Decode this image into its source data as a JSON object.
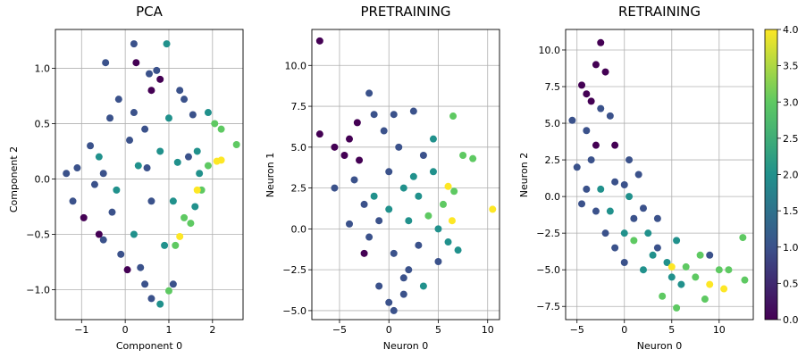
{
  "figure": {
    "background": "#ffffff"
  },
  "chart_data": [
    {
      "type": "scatter",
      "title": "PCA",
      "xlabel": "Component 0",
      "ylabel": "Component 2",
      "xlim": [
        -1.6,
        2.7
      ],
      "ylim": [
        -1.27,
        1.35
      ],
      "xticks": [
        -1,
        0,
        1,
        2
      ],
      "xtick_labels": [
        "−1",
        "0",
        "1",
        "2"
      ],
      "yticks": [
        -1.0,
        -0.5,
        0.0,
        0.5,
        1.0
      ],
      "ytick_labels": [
        "−1.0",
        "−0.5",
        "0.0",
        "0.5",
        "1.0"
      ],
      "grid": true,
      "note_points": "color value c on the shared 0–4 viridis scale",
      "points": [
        {
          "x": -0.45,
          "y": 1.05,
          "c": 1
        },
        {
          "x": 0.2,
          "y": 1.22,
          "c": 1
        },
        {
          "x": 0.95,
          "y": 1.22,
          "c": 2
        },
        {
          "x": 0.25,
          "y": 1.05,
          "c": 0
        },
        {
          "x": 0.55,
          "y": 0.95,
          "c": 1
        },
        {
          "x": 0.72,
          "y": 0.98,
          "c": 1
        },
        {
          "x": 0.8,
          "y": 0.9,
          "c": 0
        },
        {
          "x": 0.6,
          "y": 0.8,
          "c": 0
        },
        {
          "x": 1.25,
          "y": 0.8,
          "c": 1
        },
        {
          "x": 1.35,
          "y": 0.72,
          "c": 1
        },
        {
          "x": 1.55,
          "y": 0.58,
          "c": 1
        },
        {
          "x": 1.9,
          "y": 0.6,
          "c": 2
        },
        {
          "x": 2.05,
          "y": 0.5,
          "c": 3
        },
        {
          "x": 2.2,
          "y": 0.45,
          "c": 3
        },
        {
          "x": 2.55,
          "y": 0.31,
          "c": 3
        },
        {
          "x": 2.1,
          "y": 0.16,
          "c": 4
        },
        {
          "x": 2.2,
          "y": 0.17,
          "c": 4
        },
        {
          "x": 1.65,
          "y": 0.25,
          "c": 2
        },
        {
          "x": 1.9,
          "y": 0.12,
          "c": 3
        },
        {
          "x": 1.7,
          "y": 0.05,
          "c": 2
        },
        {
          "x": 1.75,
          "y": -0.1,
          "c": 3
        },
        {
          "x": 1.65,
          "y": -0.1,
          "c": 4
        },
        {
          "x": 1.6,
          "y": -0.25,
          "c": 2
        },
        {
          "x": 1.35,
          "y": -0.35,
          "c": 3
        },
        {
          "x": 1.5,
          "y": -0.4,
          "c": 3
        },
        {
          "x": 1.25,
          "y": -0.52,
          "c": 4
        },
        {
          "x": 1.15,
          "y": -0.6,
          "c": 3
        },
        {
          "x": 1.1,
          "y": -0.95,
          "c": 1
        },
        {
          "x": 1.0,
          "y": -1.01,
          "c": 3
        },
        {
          "x": 0.8,
          "y": -1.13,
          "c": 2
        },
        {
          "x": 0.6,
          "y": -1.08,
          "c": 1
        },
        {
          "x": 0.45,
          "y": -0.95,
          "c": 1
        },
        {
          "x": 0.35,
          "y": -0.8,
          "c": 1
        },
        {
          "x": 0.05,
          "y": -0.82,
          "c": 0
        },
        {
          "x": -0.1,
          "y": -0.68,
          "c": 1
        },
        {
          "x": -0.5,
          "y": -0.55,
          "c": 1
        },
        {
          "x": -0.6,
          "y": -0.5,
          "c": 0
        },
        {
          "x": -0.95,
          "y": -0.35,
          "c": 0
        },
        {
          "x": -1.2,
          "y": -0.2,
          "c": 1
        },
        {
          "x": -1.35,
          "y": 0.05,
          "c": 1
        },
        {
          "x": -1.1,
          "y": 0.1,
          "c": 1
        },
        {
          "x": -0.8,
          "y": 0.3,
          "c": 1
        },
        {
          "x": -0.6,
          "y": 0.2,
          "c": 2
        },
        {
          "x": -0.35,
          "y": 0.55,
          "c": 1
        },
        {
          "x": -0.15,
          "y": 0.72,
          "c": 1
        },
        {
          "x": 0.2,
          "y": 0.6,
          "c": 1
        },
        {
          "x": 0.45,
          "y": 0.45,
          "c": 1
        },
        {
          "x": 0.3,
          "y": 0.12,
          "c": 2
        },
        {
          "x": 0.8,
          "y": 0.25,
          "c": 2
        },
        {
          "x": 0.6,
          "y": -0.2,
          "c": 1
        },
        {
          "x": -0.2,
          "y": -0.1,
          "c": 2
        },
        {
          "x": -0.7,
          "y": -0.05,
          "c": 1
        },
        {
          "x": 0.1,
          "y": 0.35,
          "c": 1
        },
        {
          "x": 1.0,
          "y": 0.55,
          "c": 2
        },
        {
          "x": 1.1,
          "y": -0.2,
          "c": 2
        },
        {
          "x": 0.9,
          "y": -0.6,
          "c": 2
        },
        {
          "x": 0.2,
          "y": -0.5,
          "c": 2
        },
        {
          "x": -0.3,
          "y": -0.3,
          "c": 1
        },
        {
          "x": 1.45,
          "y": 0.2,
          "c": 1
        },
        {
          "x": 1.2,
          "y": 0.15,
          "c": 2
        },
        {
          "x": -0.5,
          "y": 0.05,
          "c": 1
        },
        {
          "x": 0.5,
          "y": 0.1,
          "c": 1
        }
      ]
    },
    {
      "type": "scatter",
      "title": "PRETRAINING",
      "xlabel": "Neuron 0",
      "ylabel": "Neuron 1",
      "xlim": [
        -7.8,
        11.2
      ],
      "ylim": [
        -5.55,
        12.2
      ],
      "xticks": [
        -5,
        0,
        5,
        10
      ],
      "xtick_labels": [
        "−5",
        "0",
        "5",
        "10"
      ],
      "yticks": [
        -5.0,
        -2.5,
        0.0,
        2.5,
        5.0,
        7.5,
        10.0
      ],
      "ytick_labels": [
        "−5.0",
        "−2.5",
        "0.0",
        "2.5",
        "5.0",
        "7.5",
        "10.0"
      ],
      "grid": true,
      "points": [
        {
          "x": -7.0,
          "y": 11.5,
          "c": 0
        },
        {
          "x": -2.0,
          "y": 8.3,
          "c": 1
        },
        {
          "x": -7.0,
          "y": 5.8,
          "c": 0
        },
        {
          "x": -5.5,
          "y": 5.0,
          "c": 0
        },
        {
          "x": -4.0,
          "y": 5.5,
          "c": 0
        },
        {
          "x": -3.2,
          "y": 6.5,
          "c": 0
        },
        {
          "x": -1.5,
          "y": 7.0,
          "c": 1
        },
        {
          "x": 0.5,
          "y": 7.0,
          "c": 1
        },
        {
          "x": 2.5,
          "y": 7.2,
          "c": 1
        },
        {
          "x": 4.5,
          "y": 5.5,
          "c": 2
        },
        {
          "x": 6.5,
          "y": 6.9,
          "c": 3
        },
        {
          "x": 7.5,
          "y": 4.5,
          "c": 3
        },
        {
          "x": 8.5,
          "y": 4.3,
          "c": 3
        },
        {
          "x": 6.0,
          "y": 2.6,
          "c": 4
        },
        {
          "x": 6.6,
          "y": 2.3,
          "c": 3
        },
        {
          "x": 10.5,
          "y": 1.2,
          "c": 4
        },
        {
          "x": 6.4,
          "y": 0.5,
          "c": 4
        },
        {
          "x": 6.0,
          "y": -0.8,
          "c": 2
        },
        {
          "x": 7.0,
          "y": -1.3,
          "c": 2
        },
        {
          "x": 5.0,
          "y": -2.0,
          "c": 1
        },
        {
          "x": 3.5,
          "y": -3.5,
          "c": 2
        },
        {
          "x": 1.5,
          "y": -4.0,
          "c": 1
        },
        {
          "x": 0.5,
          "y": -5.0,
          "c": 1
        },
        {
          "x": 0.0,
          "y": -4.5,
          "c": 1
        },
        {
          "x": -1.0,
          "y": -3.5,
          "c": 1
        },
        {
          "x": -2.5,
          "y": -1.5,
          "c": 0
        },
        {
          "x": -4.0,
          "y": 0.3,
          "c": 1
        },
        {
          "x": -5.5,
          "y": 2.5,
          "c": 1
        },
        {
          "x": -3.5,
          "y": 3.0,
          "c": 1
        },
        {
          "x": -1.5,
          "y": 2.0,
          "c": 2
        },
        {
          "x": 0.0,
          "y": 3.5,
          "c": 1
        },
        {
          "x": 1.5,
          "y": 2.5,
          "c": 2
        },
        {
          "x": 3.0,
          "y": 2.0,
          "c": 2
        },
        {
          "x": 2.0,
          "y": 0.5,
          "c": 2
        },
        {
          "x": 4.0,
          "y": 0.8,
          "c": 3
        },
        {
          "x": 0.5,
          "y": -1.5,
          "c": 1
        },
        {
          "x": -1.0,
          "y": 0.5,
          "c": 1
        },
        {
          "x": 3.0,
          "y": -1.0,
          "c": 1
        },
        {
          "x": 1.0,
          "y": 5.0,
          "c": 1
        },
        {
          "x": -3.0,
          "y": 4.2,
          "c": 0
        },
        {
          "x": 2.0,
          "y": -2.5,
          "c": 1
        },
        {
          "x": 4.5,
          "y": 3.5,
          "c": 2
        },
        {
          "x": 5.5,
          "y": 1.5,
          "c": 3
        },
        {
          "x": -2.0,
          "y": -0.5,
          "c": 1
        },
        {
          "x": 0.0,
          "y": 1.2,
          "c": 2
        },
        {
          "x": -4.5,
          "y": 4.5,
          "c": 0
        },
        {
          "x": 5.0,
          "y": 0.0,
          "c": 2
        },
        {
          "x": 1.5,
          "y": -3.0,
          "c": 1
        },
        {
          "x": -0.5,
          "y": 6.0,
          "c": 1
        },
        {
          "x": 3.5,
          "y": 4.5,
          "c": 1
        },
        {
          "x": -2.5,
          "y": 1.5,
          "c": 1
        },
        {
          "x": 2.5,
          "y": 3.2,
          "c": 2
        }
      ]
    },
    {
      "type": "scatter",
      "title": "RETRAINING",
      "xlabel": "Neuron 0",
      "ylabel": "Neuron 2",
      "xlim": [
        -6.2,
        13.6
      ],
      "ylim": [
        -8.4,
        11.4
      ],
      "xticks": [
        -5,
        0,
        5,
        10
      ],
      "xtick_labels": [
        "−5",
        "0",
        "5",
        "10"
      ],
      "yticks": [
        -7.5,
        -5.0,
        -2.5,
        0.0,
        2.5,
        5.0,
        7.5,
        10.0
      ],
      "ytick_labels": [
        "−7.5",
        "−5.0",
        "−2.5",
        "0.0",
        "2.5",
        "5.0",
        "7.5",
        "10.0"
      ],
      "grid": true,
      "points": [
        {
          "x": -2.5,
          "y": 10.5,
          "c": 0
        },
        {
          "x": -2.0,
          "y": 8.5,
          "c": 0
        },
        {
          "x": -3.0,
          "y": 9.0,
          "c": 0
        },
        {
          "x": -4.5,
          "y": 7.6,
          "c": 0
        },
        {
          "x": -4.0,
          "y": 7.0,
          "c": 0
        },
        {
          "x": -3.5,
          "y": 6.5,
          "c": 0
        },
        {
          "x": -2.5,
          "y": 6.0,
          "c": 1
        },
        {
          "x": -1.5,
          "y": 5.5,
          "c": 1
        },
        {
          "x": -5.5,
          "y": 5.2,
          "c": 1
        },
        {
          "x": -4.0,
          "y": 4.5,
          "c": 1
        },
        {
          "x": -3.0,
          "y": 3.5,
          "c": 0
        },
        {
          "x": -1.0,
          "y": 3.5,
          "c": 0
        },
        {
          "x": 0.5,
          "y": 2.5,
          "c": 1
        },
        {
          "x": 1.5,
          "y": 1.5,
          "c": 1
        },
        {
          "x": -5.0,
          "y": 2.0,
          "c": 1
        },
        {
          "x": -4.5,
          "y": -0.5,
          "c": 1
        },
        {
          "x": -3.0,
          "y": -1.0,
          "c": 1
        },
        {
          "x": -2.0,
          "y": -2.5,
          "c": 1
        },
        {
          "x": -1.0,
          "y": -3.5,
          "c": 1
        },
        {
          "x": 0.0,
          "y": -2.5,
          "c": 2
        },
        {
          "x": 1.0,
          "y": -1.5,
          "c": 1
        },
        {
          "x": 2.5,
          "y": -2.5,
          "c": 2
        },
        {
          "x": 3.5,
          "y": -3.5,
          "c": 1
        },
        {
          "x": 4.5,
          "y": -4.5,
          "c": 2
        },
        {
          "x": 5.0,
          "y": -5.5,
          "c": 2
        },
        {
          "x": 6.5,
          "y": -4.8,
          "c": 3
        },
        {
          "x": 7.5,
          "y": -5.5,
          "c": 3
        },
        {
          "x": 8.0,
          "y": -4.0,
          "c": 3
        },
        {
          "x": 9.0,
          "y": -4.0,
          "c": 1
        },
        {
          "x": 10.0,
          "y": -5.0,
          "c": 3
        },
        {
          "x": 11.0,
          "y": -5.0,
          "c": 3
        },
        {
          "x": 9.0,
          "y": -6.0,
          "c": 4
        },
        {
          "x": 10.5,
          "y": -6.3,
          "c": 4
        },
        {
          "x": 12.5,
          "y": -2.8,
          "c": 3
        },
        {
          "x": 12.7,
          "y": -5.7,
          "c": 3
        },
        {
          "x": 8.5,
          "y": -7.0,
          "c": 3
        },
        {
          "x": 5.5,
          "y": -7.6,
          "c": 3
        },
        {
          "x": 5.0,
          "y": -4.8,
          "c": 4
        },
        {
          "x": 4.0,
          "y": -6.8,
          "c": 3
        },
        {
          "x": 2.0,
          "y": -5.0,
          "c": 2
        },
        {
          "x": 0.0,
          "y": -4.5,
          "c": 1
        },
        {
          "x": -2.5,
          "y": 0.5,
          "c": 2
        },
        {
          "x": -1.0,
          "y": 1.0,
          "c": 1
        },
        {
          "x": 0.5,
          "y": 0.0,
          "c": 2
        },
        {
          "x": 2.0,
          "y": -0.8,
          "c": 1
        },
        {
          "x": 3.5,
          "y": -1.5,
          "c": 1
        },
        {
          "x": 5.5,
          "y": -3.0,
          "c": 2
        },
        {
          "x": -3.5,
          "y": 2.5,
          "c": 1
        },
        {
          "x": -1.5,
          "y": -1.0,
          "c": 2
        },
        {
          "x": 1.0,
          "y": -3.0,
          "c": 3
        },
        {
          "x": 6.0,
          "y": -6.0,
          "c": 2
        },
        {
          "x": -4.0,
          "y": 0.5,
          "c": 1
        },
        {
          "x": 3.0,
          "y": -4.0,
          "c": 2
        },
        {
          "x": 0.0,
          "y": 0.8,
          "c": 1
        }
      ]
    }
  ],
  "colorbar": {
    "min": 0,
    "max": 4,
    "ticks": [
      0,
      0.5,
      1,
      1.5,
      2,
      2.5,
      3,
      3.5,
      4
    ],
    "tick_labels": [
      "0.0",
      "0.5",
      "1.0",
      "1.5",
      "2.0",
      "2.5",
      "3.0",
      "3.5",
      "4.0"
    ],
    "colormap": "viridis",
    "stops": [
      "#440154",
      "#3b528b",
      "#21918c",
      "#5ec962",
      "#fde725"
    ]
  }
}
